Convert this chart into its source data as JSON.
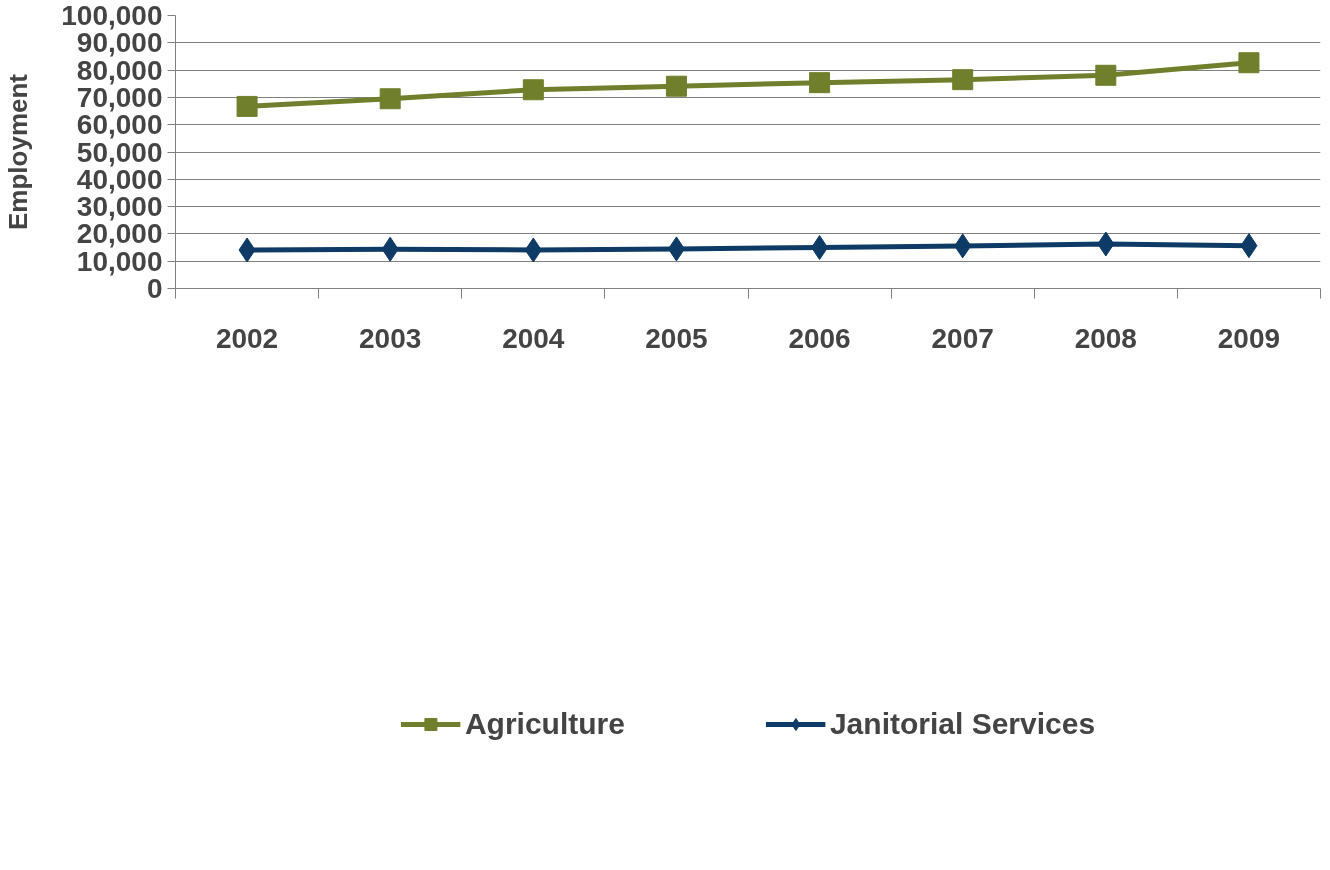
{
  "chart_data": {
    "type": "line",
    "ylabel": "Employment",
    "categories": [
      "2002",
      "2003",
      "2004",
      "2005",
      "2006",
      "2007",
      "2008",
      "2009"
    ],
    "series": [
      {
        "name": "Agriculture",
        "color": "#6f7f2b",
        "marker": "square",
        "values": [
          66700,
          69500,
          72800,
          74100,
          75400,
          76500,
          78100,
          82700
        ]
      },
      {
        "name": "Janitorial Services",
        "color": "#0e3a66",
        "marker": "diamond",
        "values": [
          14100,
          14400,
          14100,
          14500,
          15000,
          15600,
          16300,
          15700
        ]
      }
    ],
    "ylim": [
      0,
      100000
    ],
    "yticks": [
      0,
      {
        "value": 10000,
        "label": "10,000"
      },
      {
        "value": 20000,
        "label": "20,000"
      },
      {
        "value": 30000,
        "label": "30,000"
      },
      {
        "value": 40000,
        "label": "40,000"
      },
      {
        "value": 50000,
        "label": "50,000"
      },
      {
        "value": 60000,
        "label": "60,000"
      },
      {
        "value": 70000,
        "label": "70,000"
      },
      {
        "value": 80000,
        "label": "80,000"
      },
      {
        "value": 90000,
        "label": "90,000"
      },
      {
        "value": 100000,
        "label": "100,000"
      }
    ],
    "grid": "y",
    "legend": "bottom",
    "line_style": "solid"
  }
}
